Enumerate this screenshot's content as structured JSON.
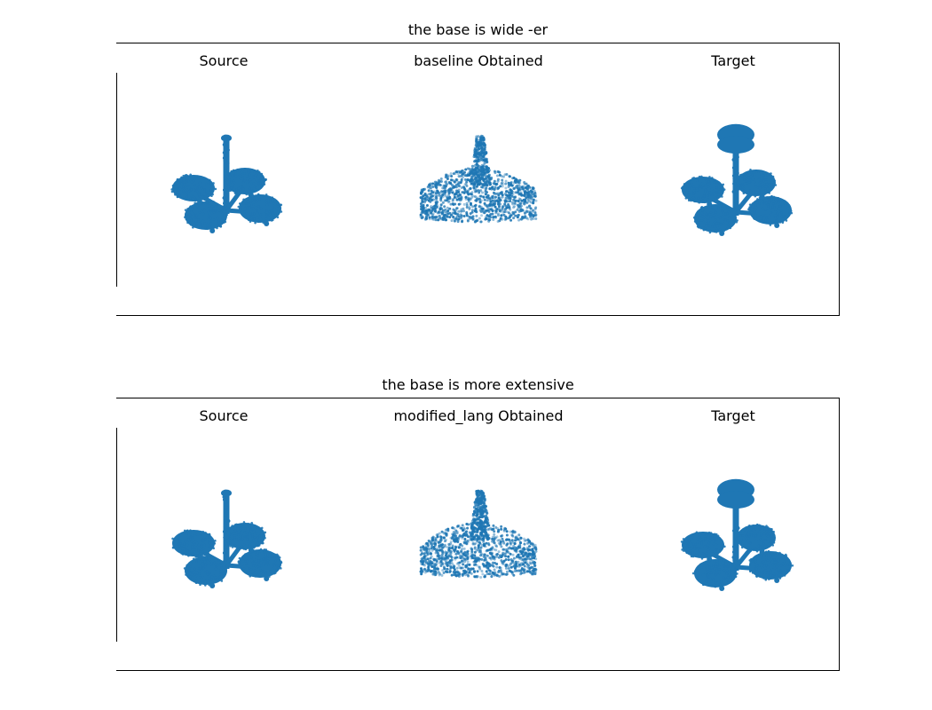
{
  "panels": [
    {
      "title": "the base is wide -er",
      "subplots": [
        {
          "label": "Source",
          "shape": "chandelier-source"
        },
        {
          "label": "baseline Obtained",
          "shape": "scatter-cloud"
        },
        {
          "label": "Target",
          "shape": "chandelier-target"
        }
      ]
    },
    {
      "title": "the base is more extensive",
      "subplots": [
        {
          "label": "Source",
          "shape": "chandelier-source"
        },
        {
          "label": "modified_lang Obtained",
          "shape": "scatter-cloud"
        },
        {
          "label": "Target",
          "shape": "chandelier-target"
        }
      ]
    }
  ],
  "colors": {
    "points": "#1f77b4"
  }
}
